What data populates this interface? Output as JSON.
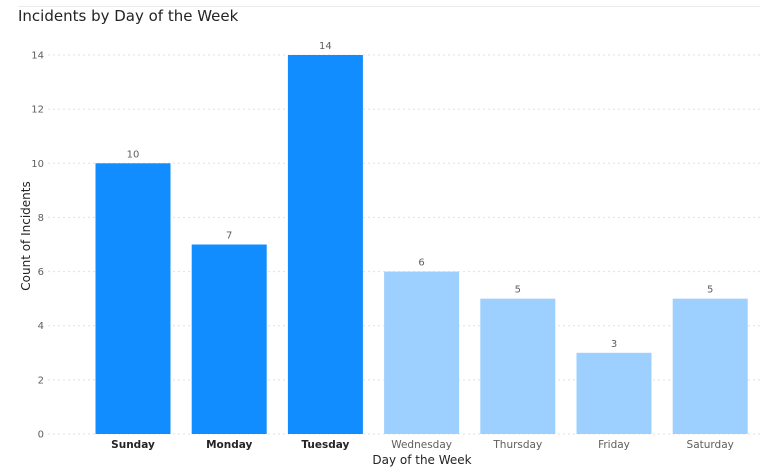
{
  "chart_data": {
    "type": "bar",
    "title": "Incidents by Day of the Week",
    "xlabel": "Day of the Week",
    "ylabel": "Count of Incidents",
    "categories": [
      "Sunday",
      "Monday",
      "Tuesday",
      "Wednesday",
      "Thursday",
      "Friday",
      "Saturday"
    ],
    "values": [
      10,
      7,
      14,
      6,
      5,
      3,
      5
    ],
    "highlighted": [
      true,
      true,
      true,
      false,
      false,
      false,
      false
    ],
    "yticks": [
      0,
      2,
      4,
      6,
      8,
      10,
      12,
      14
    ],
    "ylim": [
      0,
      14
    ],
    "grid": true,
    "legend": "none",
    "colors": {
      "highlight": "#118DFF",
      "dimmed": "#9ED0FF"
    }
  }
}
